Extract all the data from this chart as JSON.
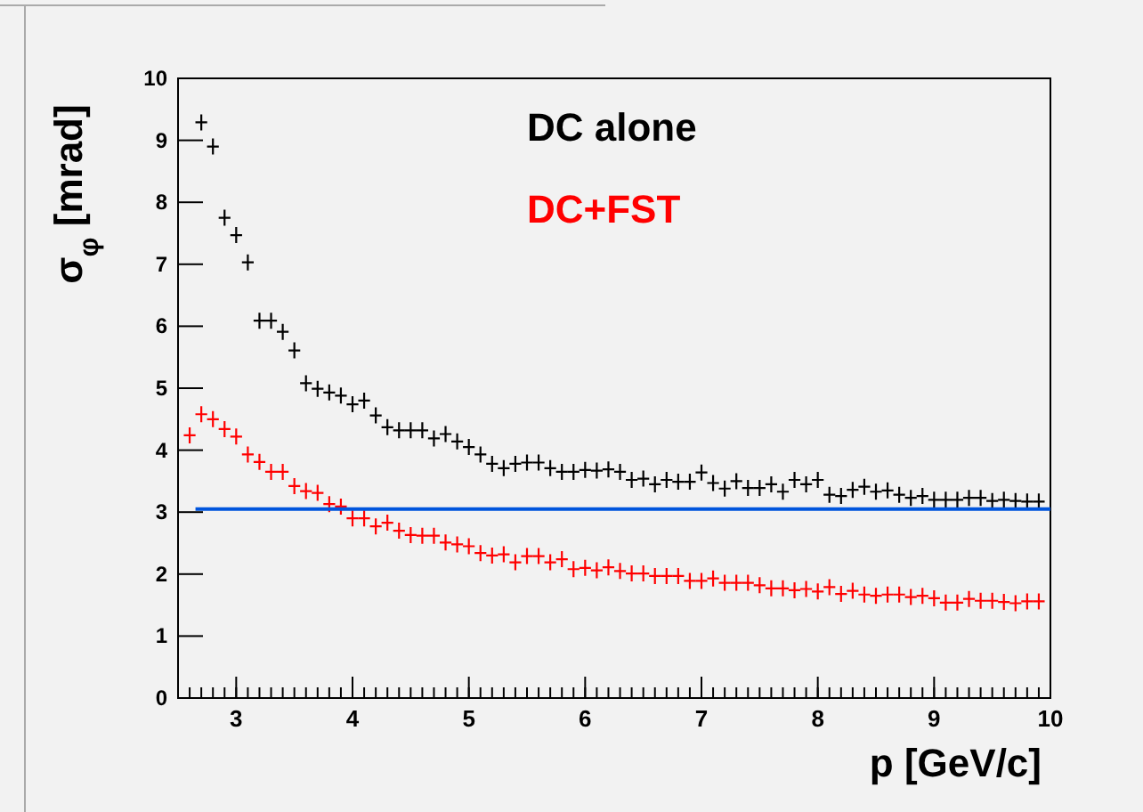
{
  "chart_data": {
    "type": "scatter",
    "xlabel": "p [GeV/c]",
    "ylabel": "σ$_{φ}$ [mrad]",
    "xlim": [
      2.5,
      10
    ],
    "xticks": [
      3,
      4,
      5,
      6,
      7,
      8,
      9,
      10
    ],
    "ylim": [
      0,
      10
    ],
    "yticks": [
      0,
      1,
      2,
      3,
      4,
      5,
      6,
      7,
      8,
      9,
      10
    ],
    "grid": false,
    "legend": "top",
    "x": [
      2.6,
      2.7,
      2.8,
      2.9,
      3.0,
      3.1,
      3.2,
      3.3,
      3.4,
      3.5,
      3.6,
      3.7,
      3.8,
      3.9,
      4.0,
      4.1,
      4.2,
      4.3,
      4.4,
      4.5,
      4.6,
      4.7,
      4.8,
      4.9,
      5.0,
      5.1,
      5.2,
      5.3,
      5.4,
      5.5,
      5.6,
      5.7,
      5.8,
      5.9,
      6.0,
      6.1,
      6.2,
      6.3,
      6.4,
      6.5,
      6.6,
      6.7,
      6.8,
      6.9,
      7.0,
      7.1,
      7.2,
      7.3,
      7.4,
      7.5,
      7.6,
      7.7,
      7.8,
      7.9,
      8.0,
      8.1,
      8.2,
      8.3,
      8.4,
      8.5,
      8.6,
      8.7,
      8.8,
      8.9,
      9.0,
      9.1,
      9.2,
      9.3,
      9.4,
      9.5,
      9.6,
      9.7,
      9.8,
      9.9
    ],
    "series": [
      {
        "name": "DC alone",
        "color": "#000000",
        "marker": "cross",
        "values": [
          null,
          9.29,
          8.9,
          7.75,
          7.47,
          7.03,
          6.09,
          6.09,
          5.91,
          5.61,
          5.08,
          4.99,
          4.93,
          4.88,
          4.74,
          4.8,
          4.56,
          4.37,
          4.32,
          4.32,
          4.32,
          4.19,
          4.26,
          4.14,
          4.05,
          3.93,
          3.78,
          3.71,
          3.78,
          3.8,
          3.8,
          3.71,
          3.65,
          3.65,
          3.68,
          3.67,
          3.69,
          3.65,
          3.52,
          3.54,
          3.45,
          3.52,
          3.49,
          3.49,
          3.64,
          3.47,
          3.38,
          3.5,
          3.39,
          3.39,
          3.45,
          3.33,
          3.52,
          3.45,
          3.52,
          3.28,
          3.26,
          3.36,
          3.41,
          3.33,
          3.35,
          3.28,
          3.23,
          3.26,
          3.2,
          3.2,
          3.2,
          3.23,
          3.23,
          3.18,
          3.2,
          3.18,
          3.17,
          3.17
        ]
      },
      {
        "name": "DC+FST",
        "color": "#ff0000",
        "marker": "cross",
        "values": [
          4.24,
          4.58,
          4.5,
          4.34,
          4.22,
          3.93,
          3.81,
          3.65,
          3.65,
          3.42,
          3.34,
          3.31,
          3.13,
          3.09,
          2.9,
          2.9,
          2.77,
          2.83,
          2.7,
          2.63,
          2.62,
          2.62,
          2.51,
          2.48,
          2.45,
          2.34,
          2.3,
          2.32,
          2.19,
          2.29,
          2.29,
          2.19,
          2.24,
          2.08,
          2.1,
          2.06,
          2.11,
          2.05,
          2.01,
          2.01,
          1.97,
          1.97,
          1.97,
          1.89,
          1.89,
          1.93,
          1.86,
          1.86,
          1.86,
          1.82,
          1.77,
          1.77,
          1.74,
          1.76,
          1.72,
          1.79,
          1.68,
          1.73,
          1.67,
          1.65,
          1.67,
          1.67,
          1.63,
          1.65,
          1.61,
          1.54,
          1.54,
          1.6,
          1.57,
          1.57,
          1.55,
          1.53,
          1.56,
          1.56
        ]
      },
      {
        "type": "line",
        "color": "#0055dd",
        "x": [
          2.65,
          10
        ],
        "values": [
          3.05,
          3.05
        ]
      }
    ]
  }
}
